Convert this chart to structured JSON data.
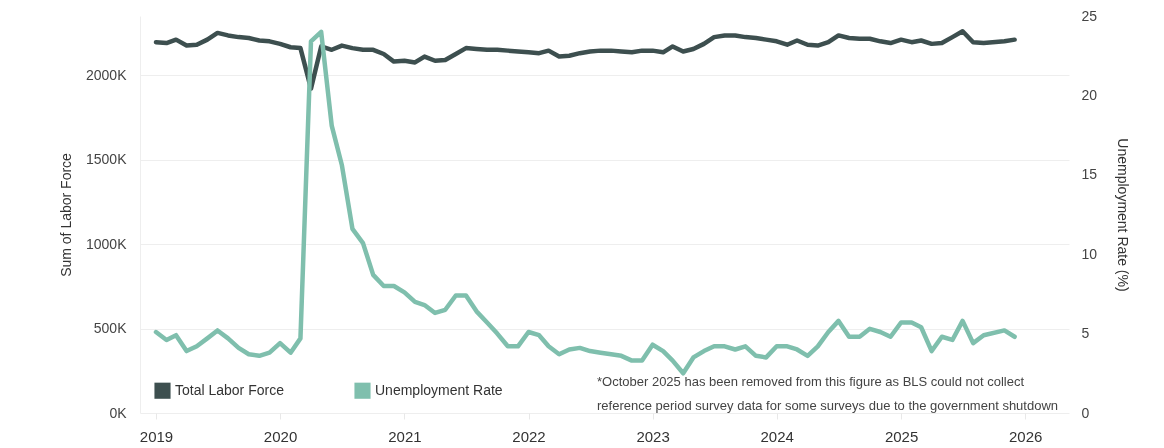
{
  "chart_data": {
    "type": "line",
    "ylabel": "Sum of Labor Force",
    "y2label": "Unemployment Rate (%)",
    "x": [
      "2019-01",
      "2019-02",
      "2019-03",
      "2019-04",
      "2019-05",
      "2019-06",
      "2019-07",
      "2019-08",
      "2019-09",
      "2019-10",
      "2019-11",
      "2019-12",
      "2020-01",
      "2020-02",
      "2020-03",
      "2020-04",
      "2020-05",
      "2020-06",
      "2020-07",
      "2020-08",
      "2020-09",
      "2020-10",
      "2020-11",
      "2020-12",
      "2021-01",
      "2021-02",
      "2021-03",
      "2021-04",
      "2021-05",
      "2021-06",
      "2021-07",
      "2021-08",
      "2021-09",
      "2021-10",
      "2021-11",
      "2021-12",
      "2022-01",
      "2022-02",
      "2022-03",
      "2022-04",
      "2022-05",
      "2022-06",
      "2022-07",
      "2022-08",
      "2022-09",
      "2022-10",
      "2022-11",
      "2022-12",
      "2023-01",
      "2023-02",
      "2023-03",
      "2023-04",
      "2023-05",
      "2023-06",
      "2023-07",
      "2023-08",
      "2023-09",
      "2023-10",
      "2023-11",
      "2023-12",
      "2024-01",
      "2024-02",
      "2024-03",
      "2024-04",
      "2024-05",
      "2024-06",
      "2024-07",
      "2024-08",
      "2024-09",
      "2024-10",
      "2024-11",
      "2024-12",
      "2025-01",
      "2025-02",
      "2025-03",
      "2025-04",
      "2025-05",
      "2025-06",
      "2025-07",
      "2025-08",
      "2025-09",
      "2025-11",
      "2025-12"
    ],
    "series": [
      {
        "name": "Total Labor Force",
        "color": "#3d4f4f",
        "values": [
          2195000,
          2190000,
          2210000,
          2175000,
          2180000,
          2210000,
          2250000,
          2235000,
          2225000,
          2220000,
          2205000,
          2200000,
          2185000,
          2165000,
          2160000,
          1920000,
          2170000,
          2150000,
          2175000,
          2160000,
          2150000,
          2150000,
          2125000,
          2080000,
          2085000,
          2075000,
          2110000,
          2085000,
          2090000,
          2125000,
          2160000,
          2155000,
          2150000,
          2150000,
          2145000,
          2140000,
          2135000,
          2130000,
          2145000,
          2110000,
          2115000,
          2130000,
          2140000,
          2145000,
          2145000,
          2140000,
          2135000,
          2145000,
          2145000,
          2135000,
          2170000,
          2140000,
          2155000,
          2185000,
          2225000,
          2235000,
          2235000,
          2225000,
          2220000,
          2210000,
          2200000,
          2180000,
          2205000,
          2180000,
          2175000,
          2195000,
          2235000,
          2220000,
          2215000,
          2215000,
          2200000,
          2190000,
          2210000,
          2195000,
          2205000,
          2185000,
          2190000,
          2225000,
          2260000,
          2195000,
          2190000,
          2200000,
          2210000
        ]
      },
      {
        "name": "Unemployment Rate",
        "color": "#7fbfad",
        "axis": "y2",
        "values": [
          5.1,
          4.6,
          4.9,
          3.9,
          4.2,
          4.7,
          5.2,
          4.7,
          4.1,
          3.7,
          3.6,
          3.8,
          4.4,
          3.8,
          4.7,
          23.4,
          24.0,
          18.1,
          15.6,
          11.6,
          10.7,
          8.7,
          8.0,
          8.0,
          7.6,
          7.0,
          6.8,
          6.3,
          6.5,
          7.4,
          7.4,
          6.4,
          5.7,
          5.0,
          4.2,
          4.2,
          5.1,
          4.9,
          4.2,
          3.7,
          4.0,
          4.1,
          3.9,
          3.8,
          3.7,
          3.6,
          3.3,
          3.3,
          4.3,
          3.9,
          3.3,
          2.5,
          3.5,
          3.9,
          4.2,
          4.2,
          4.0,
          4.2,
          3.6,
          3.5,
          4.2,
          4.2,
          4.0,
          3.6,
          4.2,
          5.1,
          5.8,
          4.8,
          4.8,
          5.3,
          5.1,
          4.8,
          5.7,
          5.7,
          5.4,
          3.9,
          4.8,
          4.6,
          5.8,
          4.4,
          4.9,
          5.2,
          4.8
        ]
      }
    ],
    "xlim": [
      "2018-11-15",
      "2026-05-10"
    ],
    "xticks": [
      {
        "value": "2019",
        "label": "2019"
      },
      {
        "value": "2020",
        "label": "2020"
      },
      {
        "value": "2021",
        "label": "2021"
      },
      {
        "value": "2022",
        "label": "2022"
      },
      {
        "value": "2023",
        "label": "2023"
      },
      {
        "value": "2024",
        "label": "2024"
      },
      {
        "value": "2025",
        "label": "2025"
      },
      {
        "value": "2026",
        "label": "2026"
      }
    ],
    "ylim": [
      0,
      2350000
    ],
    "yticks": [
      {
        "value": 0,
        "label": "0K"
      },
      {
        "value": 500000,
        "label": "500K"
      },
      {
        "value": 1000000,
        "label": "1000K"
      },
      {
        "value": 1500000,
        "label": "1500K"
      },
      {
        "value": 2000000,
        "label": "2000K"
      }
    ],
    "y2lim": [
      0,
      25
    ],
    "y2ticks": [
      0,
      5,
      10,
      15,
      20,
      25
    ],
    "grid": "y",
    "legend": "bottom left",
    "annotations": [
      "*October 2025 has been removed from this figure as BLS could not collect reference period survey data for some surveys due to the government shutdown"
    ]
  }
}
